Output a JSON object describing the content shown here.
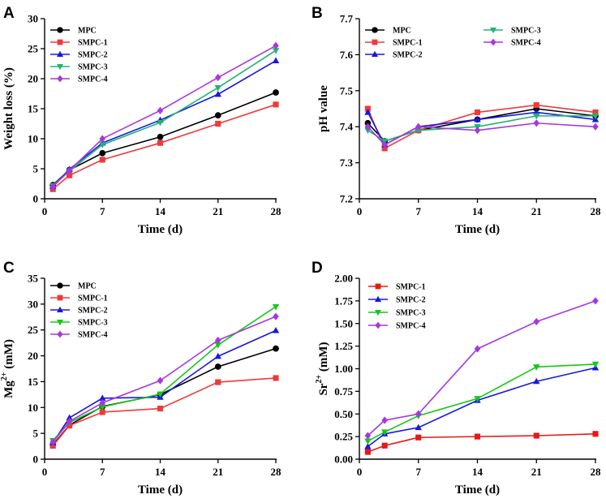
{
  "chart_data": [
    {
      "panel": "A",
      "type": "line",
      "xlabel": "Time (d)",
      "ylabel": "Weight loss (%)",
      "x": [
        1,
        3,
        7,
        14,
        21,
        28
      ],
      "xticks": [
        "0",
        "7",
        "14",
        "21",
        "28"
      ],
      "xlim": [
        0,
        28
      ],
      "yticks": [
        "0",
        "5",
        "10",
        "15",
        "20",
        "25",
        "30"
      ],
      "ylim": [
        0,
        30
      ],
      "series": [
        {
          "name": "MPC",
          "color": "#000000",
          "marker": "circle",
          "values": [
            2.3,
            4.8,
            7.6,
            10.3,
            13.9,
            17.7
          ]
        },
        {
          "name": "SMPC-1",
          "color": "#F0393A",
          "marker": "square",
          "values": [
            1.6,
            3.9,
            6.5,
            9.3,
            12.5,
            15.7
          ]
        },
        {
          "name": "SMPC-2",
          "color": "#1818E0",
          "marker": "triangle-up",
          "values": [
            2.1,
            4.9,
            9.3,
            13.1,
            17.4,
            23.0
          ]
        },
        {
          "name": "SMPC-3",
          "color": "#1FB573",
          "marker": "triangle-down",
          "values": [
            2.2,
            4.6,
            9.0,
            12.7,
            18.5,
            24.7
          ]
        },
        {
          "name": "SMPC-4",
          "color": "#A637E0",
          "marker": "diamond",
          "values": [
            2.0,
            4.7,
            10.0,
            14.7,
            20.2,
            25.5
          ]
        }
      ]
    },
    {
      "panel": "B",
      "type": "line",
      "xlabel": "Time (d)",
      "ylabel": "pH value",
      "x": [
        1,
        3,
        7,
        14,
        21,
        28
      ],
      "xticks": [
        "0",
        "7",
        "14",
        "21",
        "28"
      ],
      "xlim": [
        0,
        28
      ],
      "yticks": [
        "7.2",
        "7.3",
        "7.4",
        "7.5",
        "7.6",
        "7.7"
      ],
      "ylim": [
        7.2,
        7.7
      ],
      "series": [
        {
          "name": "MPC",
          "color": "#000000",
          "marker": "circle",
          "values": [
            7.41,
            7.36,
            7.39,
            7.42,
            7.45,
            7.43
          ]
        },
        {
          "name": "SMPC-1",
          "color": "#F0393A",
          "marker": "square",
          "values": [
            7.45,
            7.34,
            7.39,
            7.44,
            7.46,
            7.44
          ]
        },
        {
          "name": "SMPC-2",
          "color": "#1818E0",
          "marker": "triangle-up",
          "values": [
            7.44,
            7.35,
            7.4,
            7.42,
            7.44,
            7.42
          ]
        },
        {
          "name": "SMPC-3",
          "color": "#1FB573",
          "marker": "triangle-down",
          "values": [
            7.39,
            7.36,
            7.39,
            7.4,
            7.43,
            7.43
          ]
        },
        {
          "name": "SMPC-4",
          "color": "#A637E0",
          "marker": "diamond",
          "values": [
            7.4,
            7.35,
            7.4,
            7.39,
            7.41,
            7.4
          ]
        }
      ]
    },
    {
      "panel": "C",
      "type": "line",
      "xlabel": "Time (d)",
      "ylabel": "Mg",
      "ylabel_sup": "2+",
      "ylabel_unit": " (mM)",
      "x": [
        1,
        3,
        7,
        14,
        21,
        28
      ],
      "xticks": [
        "0",
        "7",
        "14",
        "21",
        "28"
      ],
      "xlim": [
        0,
        28
      ],
      "yticks": [
        "0",
        "5",
        "10",
        "15",
        "20",
        "25",
        "30",
        "35"
      ],
      "ylim": [
        0,
        35
      ],
      "series": [
        {
          "name": "MPC",
          "color": "#000000",
          "marker": "circle",
          "values": [
            2.8,
            6.6,
            10.2,
            12.5,
            17.9,
            21.4
          ]
        },
        {
          "name": "SMPC-1",
          "color": "#F0393A",
          "marker": "square",
          "values": [
            2.6,
            6.5,
            9.1,
            9.8,
            14.9,
            15.7
          ]
        },
        {
          "name": "SMPC-2",
          "color": "#1818E0",
          "marker": "triangle-up",
          "values": [
            3.2,
            8.0,
            11.8,
            12.0,
            19.9,
            24.9
          ]
        },
        {
          "name": "SMPC-3",
          "color": "#14C814",
          "marker": "triangle-down",
          "values": [
            3.6,
            7.1,
            10.1,
            12.6,
            22.1,
            29.5
          ]
        },
        {
          "name": "SMPC-4",
          "color": "#A637E0",
          "marker": "diamond",
          "values": [
            3.3,
            7.3,
            10.9,
            15.2,
            23.0,
            27.6
          ]
        }
      ]
    },
    {
      "panel": "D",
      "type": "line",
      "xlabel": "Time (d)",
      "ylabel": "Sr",
      "ylabel_sup": "2+",
      "ylabel_unit": " (mM)",
      "x": [
        1,
        3,
        7,
        14,
        21,
        28
      ],
      "xticks": [
        "0",
        "7",
        "14",
        "21",
        "28"
      ],
      "xlim": [
        0,
        28
      ],
      "yticks": [
        "0.00",
        "0.25",
        "0.50",
        "0.75",
        "1.00",
        "1.25",
        "1.50",
        "1.75",
        "2.00"
      ],
      "ylim": [
        0,
        2
      ],
      "series": [
        {
          "name": "SMPC-1",
          "color": "#E81818",
          "marker": "square",
          "values": [
            0.08,
            0.15,
            0.24,
            0.25,
            0.26,
            0.28
          ]
        },
        {
          "name": "SMPC-2",
          "color": "#1818E0",
          "marker": "triangle-up",
          "values": [
            0.14,
            0.28,
            0.35,
            0.65,
            0.86,
            1.01
          ]
        },
        {
          "name": "SMPC-3",
          "color": "#14C814",
          "marker": "triangle-down",
          "values": [
            0.2,
            0.3,
            0.48,
            0.67,
            1.02,
            1.05
          ]
        },
        {
          "name": "SMPC-4",
          "color": "#A637E0",
          "marker": "diamond",
          "values": [
            0.26,
            0.43,
            0.5,
            1.22,
            1.52,
            1.75
          ]
        }
      ]
    }
  ]
}
